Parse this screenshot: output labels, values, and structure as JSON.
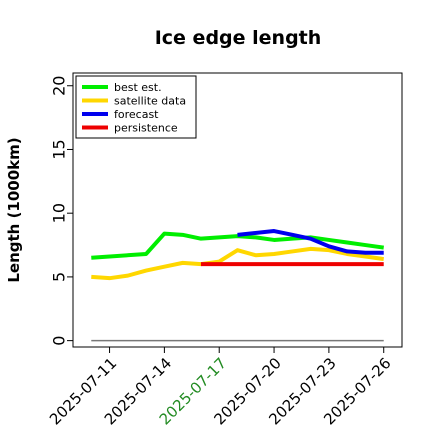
{
  "chart_data": {
    "type": "line",
    "title": "Ice edge length",
    "ylabel": "Length (1000km)",
    "xlabel": "",
    "ylim": [
      -0.5,
      21
    ],
    "yticks": [
      0,
      5,
      10,
      15,
      20
    ],
    "x_range": [
      "2025-07-09",
      "2025-07-27"
    ],
    "x_ticks": [
      "2025-07-11",
      "2025-07-14",
      "2025-07-17",
      "2025-07-20",
      "2025-07-23",
      "2025-07-26"
    ],
    "highlight_tick": {
      "label": "2025-07-17",
      "color": "#228B22"
    },
    "legend_position": "top-left",
    "grid": false,
    "series": [
      {
        "name": "best est.",
        "color": "#00ee00",
        "x": [
          "2025-07-10",
          "2025-07-13",
          "2025-07-14",
          "2025-07-15",
          "2025-07-16",
          "2025-07-17",
          "2025-07-18",
          "2025-07-19",
          "2025-07-20",
          "2025-07-21",
          "2025-07-22",
          "2025-07-23",
          "2025-07-24",
          "2025-07-25",
          "2025-07-26"
        ],
        "values": [
          6.5,
          6.8,
          8.4,
          8.3,
          8.0,
          8.1,
          8.2,
          8.1,
          7.9,
          8.0,
          8.1,
          7.9,
          7.7,
          7.5,
          7.3
        ]
      },
      {
        "name": "satellite data",
        "color": "#ffd700",
        "x": [
          "2025-07-10",
          "2025-07-11",
          "2025-07-12",
          "2025-07-13",
          "2025-07-14",
          "2025-07-15",
          "2025-07-16",
          "2025-07-17",
          "2025-07-18",
          "2025-07-19",
          "2025-07-20",
          "2025-07-21",
          "2025-07-22",
          "2025-07-23",
          "2025-07-24",
          "2025-07-25",
          "2025-07-26"
        ],
        "values": [
          5.0,
          4.9,
          5.1,
          5.5,
          5.8,
          6.1,
          6.0,
          6.2,
          7.1,
          6.7,
          6.8,
          7.0,
          7.2,
          7.1,
          6.8,
          6.6,
          6.4
        ]
      },
      {
        "name": "forecast",
        "color": "#0000ee",
        "x": [
          "2025-07-18",
          "2025-07-20",
          "2025-07-21",
          "2025-07-22",
          "2025-07-23",
          "2025-07-24",
          "2025-07-25",
          "2025-07-26"
        ],
        "values": [
          8.3,
          8.6,
          8.3,
          8.0,
          7.4,
          7.0,
          6.9,
          6.9
        ]
      },
      {
        "name": "persistence",
        "color": "#ee0000",
        "x": [
          "2025-07-16",
          "2025-07-26"
        ],
        "values": [
          6.0,
          6.0
        ]
      }
    ],
    "reference_line": {
      "color": "#777777",
      "x": [
        "2025-07-10",
        "2025-07-26"
      ],
      "values": [
        0,
        0
      ]
    }
  }
}
